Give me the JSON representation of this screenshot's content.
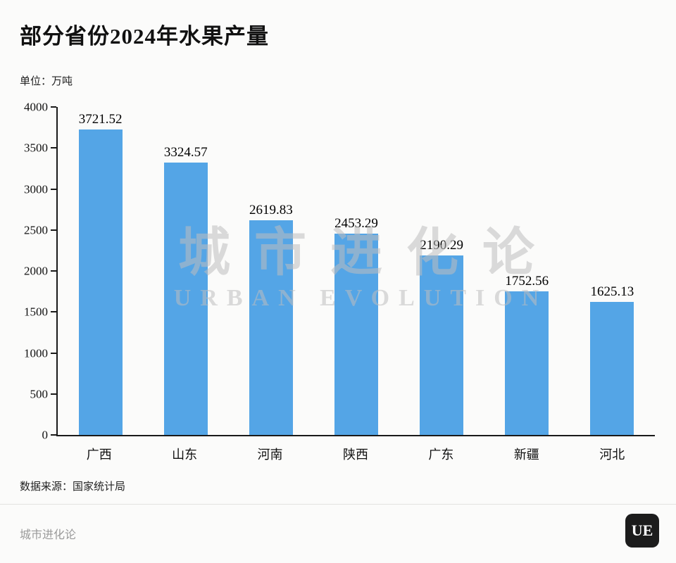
{
  "page": {
    "title": "部分省份2024年水果产量",
    "unit_label": "单位：万吨"
  },
  "chart_data": {
    "type": "bar",
    "title": "部分省份2024年水果产量",
    "unit": "万吨",
    "categories": [
      "广西",
      "山东",
      "河南",
      "陕西",
      "广东",
      "新疆",
      "河北"
    ],
    "values": [
      3721.52,
      3324.57,
      2619.83,
      2453.29,
      2190.29,
      1752.56,
      1625.13
    ],
    "value_labels": [
      "3721.52",
      "3324.57",
      "2619.83",
      "2453.29",
      "2190.29",
      "1752.56",
      "1625.13"
    ],
    "ylim": [
      0,
      4000
    ],
    "yticks": [
      0,
      500,
      1000,
      1500,
      2000,
      2500,
      3000,
      3500,
      4000
    ],
    "bar_color": "#54a5e6",
    "grid": "off",
    "legend": "none"
  },
  "watermark": {
    "line1": "城市进化论",
    "line2": "URBAN EVOLUTION"
  },
  "footer": {
    "source": "数据来源：国家统计局",
    "brand": "城市进化论",
    "logo_text": "UE"
  }
}
